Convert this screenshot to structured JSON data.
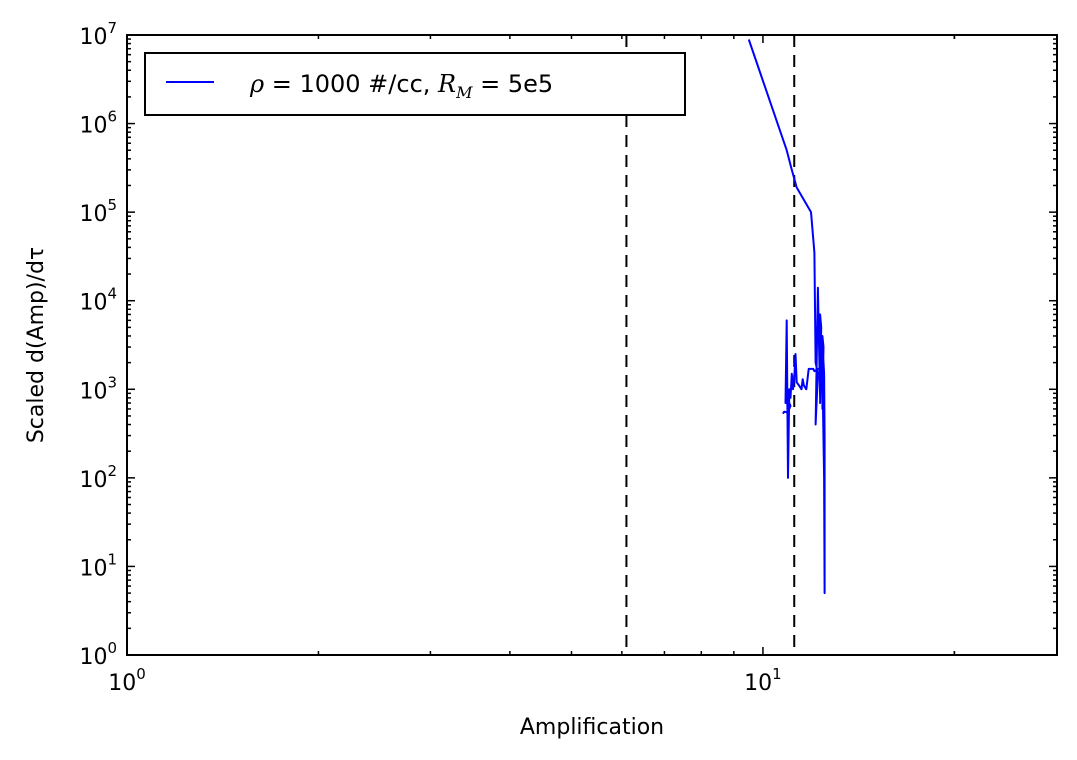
{
  "chart_data": {
    "type": "line",
    "xlabel": "Amplification",
    "ylabel": "Scaled d(Amp)/dτ",
    "xscale": "log",
    "yscale": "log",
    "xlim": [
      1,
      29
    ],
    "ylim": [
      1,
      10000000
    ],
    "x_ticks": [
      {
        "base": "10",
        "exp": "0",
        "value": 1
      },
      {
        "base": "10",
        "exp": "1",
        "value": 10
      }
    ],
    "y_ticks": [
      {
        "base": "10",
        "exp": "0",
        "value": 1
      },
      {
        "base": "10",
        "exp": "1",
        "value": 10
      },
      {
        "base": "10",
        "exp": "2",
        "value": 100
      },
      {
        "base": "10",
        "exp": "3",
        "value": 1000
      },
      {
        "base": "10",
        "exp": "4",
        "value": 10000
      },
      {
        "base": "10",
        "exp": "5",
        "value": 100000
      },
      {
        "base": "10",
        "exp": "6",
        "value": 1000000
      },
      {
        "base": "10",
        "exp": "7",
        "value": 10000000
      }
    ],
    "grid": false,
    "legend_position": "top-left",
    "vlines": [
      6.1,
      11.2
    ],
    "series": [
      {
        "name": "ρ = 1000 #/cc, R_M = 5e5",
        "legend": {
          "rho": "ρ",
          "eq1": " = 1000 #/cc, ",
          "R": "R",
          "sub": "M",
          "eq2": " = 5e5"
        },
        "color": "#0000ff",
        "x": [
          9.5,
          10.9,
          11.1,
          11.3,
          11.9,
          12.05,
          12.1,
          12.2,
          12.1,
          12.2,
          12.3,
          12.25,
          12.3,
          12.35,
          12.3,
          12.4,
          12.45,
          12.4,
          12.42,
          12.45,
          12.48,
          12.5,
          12.5,
          12.48,
          12.4,
          12.3,
          12.2,
          12.05,
          12.0,
          11.8,
          11.7,
          11.6,
          11.55,
          11.5,
          11.4,
          11.3,
          11.25,
          11.2,
          11.15,
          11.1,
          11.05,
          11.0,
          10.95,
          10.9,
          10.85,
          10.9,
          10.95,
          10.9,
          10.95,
          11.0,
          11.05,
          11.0,
          10.9,
          10.8,
          10.75
        ],
        "y": [
          8900000,
          500000,
          300000,
          190000,
          100000,
          35000,
          2000,
          1500,
          400,
          14000,
          800,
          6500,
          7000,
          5000,
          700,
          4000,
          3000,
          600,
          3000,
          2000,
          1500,
          300,
          5,
          100,
          1700,
          1700,
          1700,
          1600,
          1700,
          1700,
          1000,
          1100,
          1300,
          1000,
          1100,
          1200,
          2500,
          1300,
          1000,
          1500,
          800,
          1000,
          100,
          6000,
          700,
          800,
          900,
          750,
          600,
          700,
          650,
          600,
          550,
          560,
          530
        ]
      }
    ]
  }
}
